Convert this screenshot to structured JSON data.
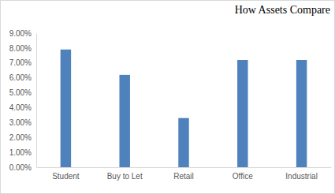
{
  "chart_data": {
    "type": "bar",
    "title": "How Assets Compare",
    "categories": [
      "Student",
      "Buy to Let",
      "Retail",
      "Office",
      "Industrial"
    ],
    "values": [
      7.9,
      6.2,
      3.3,
      7.2,
      7.2
    ],
    "color": "#4f81bd",
    "ylim": [
      0,
      9
    ],
    "yticks": [
      {
        "value": 0,
        "label": "0.00%"
      },
      {
        "value": 1,
        "label": "1.00%"
      },
      {
        "value": 2,
        "label": "2.00%"
      },
      {
        "value": 3,
        "label": "3.00%"
      },
      {
        "value": 4,
        "label": "4.00%"
      },
      {
        "value": 5,
        "label": "5.00%"
      },
      {
        "value": 6,
        "label": "6.00%"
      },
      {
        "value": 7,
        "label": "7.00%"
      },
      {
        "value": 8,
        "label": "8.00%"
      },
      {
        "value": 9,
        "label": "9.00%"
      }
    ],
    "grid": false
  }
}
